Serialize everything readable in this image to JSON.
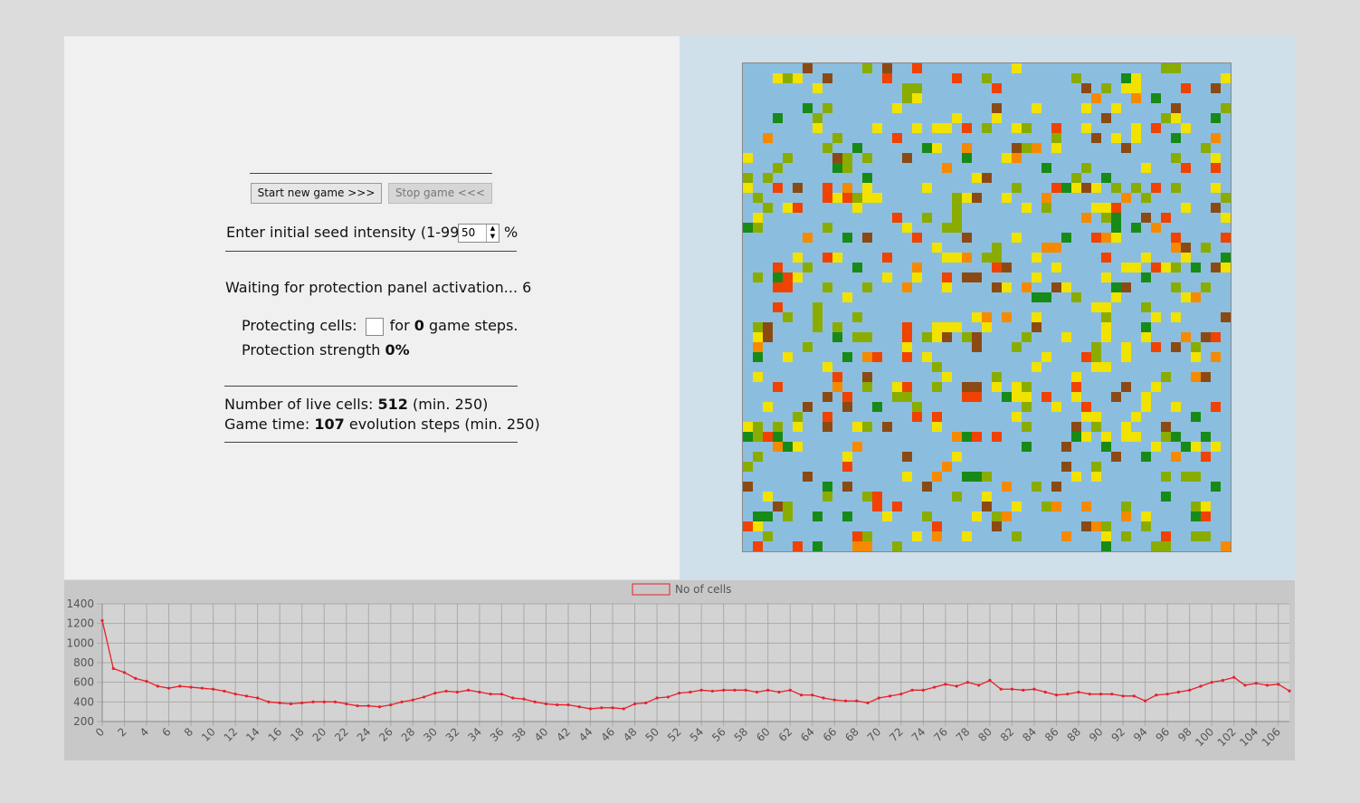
{
  "controls": {
    "start_button": "Start new game >>>",
    "stop_button": "Stop game <<<",
    "seed_label": "Enter initial seed intensity (1-99):",
    "seed_value": "50",
    "seed_unit": "%"
  },
  "status": {
    "waiting": "Waiting for protection panel activation... 6",
    "protecting_label": "Protecting cells:",
    "protecting_for": "for",
    "protecting_steps": "0",
    "protecting_suffix": "game steps.",
    "strength_label": "Protection strength",
    "strength_value": "0%",
    "live_label": "Number of live cells:",
    "live_value": "512",
    "live_min": "(min. 250)",
    "time_label": "Game time:",
    "time_value": "107",
    "time_suffix": "evolution steps (min. 250)"
  },
  "chart_data": {
    "type": "line",
    "x": [
      0,
      1,
      2,
      3,
      4,
      5,
      6,
      7,
      8,
      9,
      10,
      11,
      12,
      13,
      14,
      15,
      16,
      17,
      18,
      19,
      20,
      21,
      22,
      23,
      24,
      25,
      26,
      27,
      28,
      29,
      30,
      31,
      32,
      33,
      34,
      35,
      36,
      37,
      38,
      39,
      40,
      41,
      42,
      43,
      44,
      45,
      46,
      47,
      48,
      49,
      50,
      51,
      52,
      53,
      54,
      55,
      56,
      57,
      58,
      59,
      60,
      61,
      62,
      63,
      64,
      65,
      66,
      67,
      68,
      69,
      70,
      71,
      72,
      73,
      74,
      75,
      76,
      77,
      78,
      79,
      80,
      81,
      82,
      83,
      84,
      85,
      86,
      87,
      88,
      89,
      90,
      91,
      92,
      93,
      94,
      95,
      96,
      97,
      98,
      99,
      100,
      101,
      102,
      103,
      104,
      105,
      106,
      107
    ],
    "series": [
      {
        "name": "No of cells",
        "color": "#e8202a",
        "values": [
          1230,
          740,
          700,
          640,
          610,
          560,
          540,
          560,
          550,
          540,
          530,
          510,
          480,
          460,
          440,
          400,
          390,
          380,
          390,
          400,
          400,
          400,
          380,
          360,
          360,
          350,
          370,
          400,
          420,
          450,
          490,
          510,
          500,
          520,
          500,
          480,
          480,
          440,
          430,
          400,
          380,
          370,
          370,
          350,
          330,
          340,
          340,
          330,
          380,
          390,
          440,
          450,
          490,
          500,
          520,
          510,
          520,
          520,
          520,
          500,
          520,
          500,
          520,
          470,
          470,
          440,
          420,
          410,
          410,
          390,
          440,
          460,
          480,
          520,
          520,
          550,
          580,
          560,
          600,
          570,
          620,
          530,
          530,
          520,
          530,
          500,
          470,
          480,
          500,
          480,
          480,
          480,
          460,
          460,
          410,
          470,
          480,
          500,
          520,
          560,
          600,
          620,
          650,
          570,
          590,
          570,
          580,
          512
        ]
      }
    ],
    "xlim": [
      0,
      107
    ],
    "xticks": [
      0,
      2,
      4,
      6,
      8,
      10,
      12,
      14,
      16,
      18,
      20,
      22,
      24,
      26,
      28,
      30,
      32,
      34,
      36,
      38,
      40,
      42,
      44,
      46,
      48,
      50,
      52,
      54,
      56,
      58,
      60,
      62,
      64,
      66,
      68,
      70,
      72,
      74,
      76,
      78,
      80,
      82,
      84,
      86,
      88,
      90,
      92,
      94,
      96,
      98,
      100,
      102,
      104,
      106
    ],
    "ylim": [
      200,
      1400
    ],
    "yticks": [
      200,
      400,
      600,
      800,
      1000,
      1200,
      1400
    ],
    "grid": true
  }
}
